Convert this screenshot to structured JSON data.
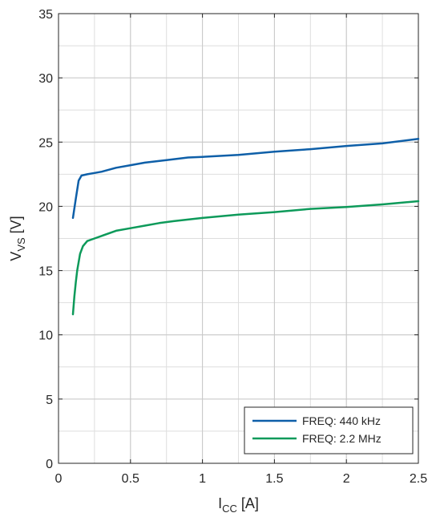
{
  "chart_data": {
    "type": "line",
    "xlabel": {
      "main": "I",
      "sub": "CC",
      "unit": " [A]"
    },
    "ylabel": {
      "main": "V",
      "sub": "VS",
      "unit": " [V]"
    },
    "xlim": [
      0,
      2.5
    ],
    "ylim": [
      0,
      35
    ],
    "xticks": [
      0,
      0.5,
      1,
      1.5,
      2,
      2.5
    ],
    "xtick_labels": [
      "0",
      "0.5",
      "1",
      "1.5",
      "2",
      "2.5"
    ],
    "yticks": [
      0,
      5,
      10,
      15,
      20,
      25,
      30,
      35
    ],
    "ytick_labels": [
      "0",
      "5",
      "10",
      "15",
      "20",
      "25",
      "30",
      "35"
    ],
    "minor_grid_step_x": 0.25,
    "minor_grid_step_y": 2.5,
    "grid": true,
    "legend_position": "bottom-right",
    "series": [
      {
        "name": "FREQ: 440 kHz",
        "color": "#0e5fa8",
        "x": [
          0.1,
          0.12,
          0.14,
          0.16,
          0.2,
          0.25,
          0.3,
          0.4,
          0.5,
          0.6,
          0.75,
          0.9,
          1.0,
          1.25,
          1.5,
          1.75,
          2.0,
          2.25,
          2.5
        ],
        "y": [
          19.1,
          20.6,
          22.0,
          22.4,
          22.5,
          22.6,
          22.7,
          23.0,
          23.2,
          23.4,
          23.6,
          23.8,
          23.85,
          24.0,
          24.25,
          24.45,
          24.7,
          24.9,
          25.25
        ]
      },
      {
        "name": "FREQ: 2.2 MHz",
        "color": "#0d9a5a",
        "x": [
          0.1,
          0.11,
          0.12,
          0.13,
          0.15,
          0.17,
          0.2,
          0.25,
          0.3,
          0.4,
          0.5,
          0.6,
          0.7,
          0.8,
          1.0,
          1.25,
          1.5,
          1.75,
          2.0,
          2.25,
          2.5
        ],
        "y": [
          11.6,
          13.0,
          14.1,
          15.0,
          16.3,
          16.9,
          17.3,
          17.5,
          17.7,
          18.1,
          18.3,
          18.5,
          18.7,
          18.85,
          19.1,
          19.35,
          19.55,
          19.8,
          19.95,
          20.15,
          20.4
        ]
      }
    ]
  }
}
